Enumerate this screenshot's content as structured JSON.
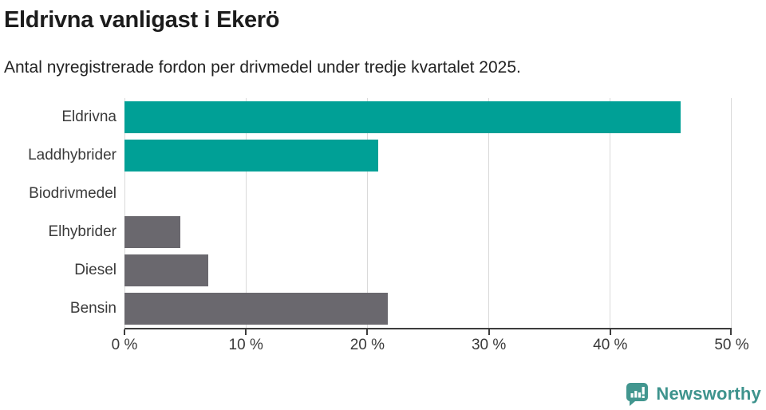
{
  "header": {
    "title": "Eldrivna vanligast i Ekerö",
    "subtitle": "Antal nyregistrerade fordon per drivmedel under tredje kvartalet 2025."
  },
  "chart_data": {
    "type": "bar",
    "orientation": "horizontal",
    "title": "Eldrivna vanligast i Ekerö",
    "subtitle": "Antal nyregistrerade fordon per drivmedel under tredje kvartalet 2025.",
    "categories": [
      "Eldrivna",
      "Laddhybrider",
      "Biodrivmedel",
      "Elhybrider",
      "Diesel",
      "Bensin"
    ],
    "values": [
      45.8,
      20.9,
      0,
      4.6,
      6.9,
      21.7
    ],
    "unit": "%",
    "xlabel": "",
    "ylabel": "",
    "xlim": [
      0,
      50
    ],
    "x_ticks": [
      0,
      10,
      20,
      30,
      40,
      50
    ],
    "x_tick_labels": [
      "0 %",
      "10 %",
      "20 %",
      "30 %",
      "40 %",
      "50 %"
    ],
    "bar_colors": [
      "#00a096",
      "#00a096",
      "#00a096",
      "#6a686e",
      "#6a686e",
      "#6a686e"
    ],
    "grid": true,
    "gridline_color": "#d9d9d9",
    "axis_color": "#3d3d3d"
  },
  "footer": {
    "brand": "Newsworthy",
    "brand_color": "#3e938d",
    "logo_color": "#42968f"
  }
}
